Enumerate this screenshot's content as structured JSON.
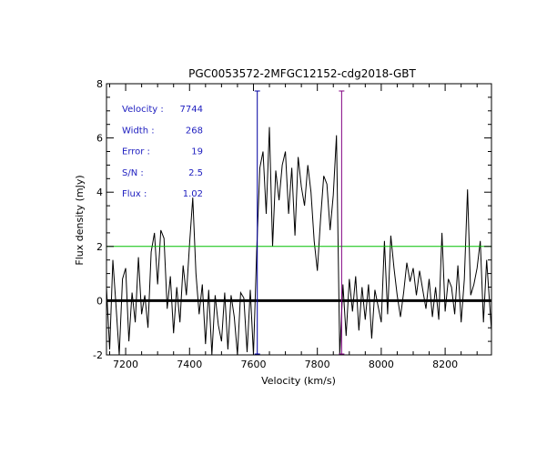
{
  "chart_data": {
    "type": "line",
    "title": "PGC0053572-2MFGC12152-cdg2018-GBT",
    "xlabel": "Velocity (km/s)",
    "ylabel": "Flux density (mJy)",
    "xlim": [
      7140,
      8345
    ],
    "ylim": [
      -2,
      8
    ],
    "xticks": [
      7200,
      7400,
      7600,
      7800,
      8000,
      8200
    ],
    "yticks": [
      -2,
      0,
      2,
      4,
      6,
      8
    ],
    "xtick_labels": [
      "7200",
      "7400",
      "7600",
      "7800",
      "8000",
      "8200"
    ],
    "ytick_labels": [
      "-2",
      "0",
      "2",
      "4",
      "6",
      "8"
    ],
    "annotations": [
      {
        "label": "Velocity :",
        "value": "7744"
      },
      {
        "label": "Width :",
        "value": "268"
      },
      {
        "label": "Error :",
        "value": "19"
      },
      {
        "label": "S/N :",
        "value": "2.5"
      },
      {
        "label": "Flux :",
        "value": "1.02"
      }
    ],
    "hlines": [
      {
        "name": "zero-level",
        "y": 0,
        "color": "#000000"
      },
      {
        "name": "threshold-level",
        "y": 2,
        "color": "#00c000"
      }
    ],
    "vlines": [
      {
        "name": "left-window-marker",
        "x": 7612,
        "color": "#0000a0"
      },
      {
        "name": "right-window-marker",
        "x": 7876,
        "color": "#800080"
      }
    ],
    "series": [
      {
        "name": "spectrum",
        "color": "#000000",
        "x": [
          7140,
          7150,
          7160,
          7170,
          7180,
          7190,
          7200,
          7210,
          7220,
          7230,
          7240,
          7250,
          7260,
          7270,
          7280,
          7290,
          7300,
          7310,
          7320,
          7330,
          7340,
          7350,
          7360,
          7370,
          7380,
          7390,
          7400,
          7410,
          7420,
          7430,
          7440,
          7450,
          7460,
          7470,
          7480,
          7490,
          7500,
          7510,
          7520,
          7530,
          7540,
          7550,
          7560,
          7570,
          7580,
          7590,
          7600,
          7610,
          7620,
          7630,
          7640,
          7650,
          7660,
          7670,
          7680,
          7690,
          7700,
          7710,
          7720,
          7730,
          7740,
          7750,
          7760,
          7770,
          7780,
          7790,
          7800,
          7810,
          7820,
          7830,
          7840,
          7850,
          7860,
          7870,
          7880,
          7890,
          7900,
          7910,
          7920,
          7930,
          7940,
          7950,
          7960,
          7970,
          7980,
          7990,
          8000,
          8010,
          8020,
          8030,
          8040,
          8050,
          8060,
          8070,
          8080,
          8090,
          8100,
          8110,
          8120,
          8130,
          8140,
          8150,
          8160,
          8170,
          8180,
          8190,
          8200,
          8210,
          8220,
          8230,
          8240,
          8250,
          8260,
          8270,
          8280,
          8290,
          8300,
          8310,
          8320,
          8330,
          8345
        ],
        "y": [
          0.5,
          -1.8,
          1.5,
          -0.2,
          -2.0,
          0.8,
          1.2,
          -1.5,
          0.3,
          -0.8,
          1.6,
          -0.5,
          0.2,
          -1.0,
          1.8,
          2.5,
          0.6,
          2.6,
          2.3,
          -0.3,
          0.9,
          -1.2,
          0.5,
          -0.8,
          1.3,
          0.2,
          2.1,
          3.8,
          1.0,
          -0.5,
          0.6,
          -1.6,
          0.4,
          -2.0,
          0.2,
          -0.9,
          -1.5,
          0.3,
          -1.8,
          0.2,
          -0.6,
          -2.0,
          0.3,
          0.1,
          -1.9,
          0.4,
          -2.0,
          1.8,
          4.9,
          5.5,
          3.2,
          6.4,
          2.0,
          4.8,
          3.7,
          5.0,
          5.5,
          3.2,
          4.9,
          2.4,
          5.3,
          4.2,
          3.5,
          5.0,
          4.0,
          2.2,
          1.1,
          3.0,
          4.6,
          4.3,
          2.6,
          3.9,
          6.1,
          -2.0,
          0.6,
          -1.3,
          0.8,
          -0.4,
          0.9,
          -1.1,
          0.5,
          -0.7,
          0.6,
          -1.4,
          0.4,
          -0.2,
          -0.8,
          2.2,
          -0.5,
          2.4,
          1.2,
          0.2,
          -0.6,
          0.3,
          1.4,
          0.7,
          1.2,
          0.2,
          1.1,
          0.4,
          -0.3,
          0.8,
          -0.6,
          0.5,
          -0.7,
          2.5,
          -0.4,
          0.8,
          0.5,
          -0.5,
          1.3,
          -0.8,
          0.8,
          4.1,
          0.2,
          0.6,
          1.2,
          2.2,
          -0.8,
          1.5,
          -1.1
        ]
      }
    ]
  }
}
